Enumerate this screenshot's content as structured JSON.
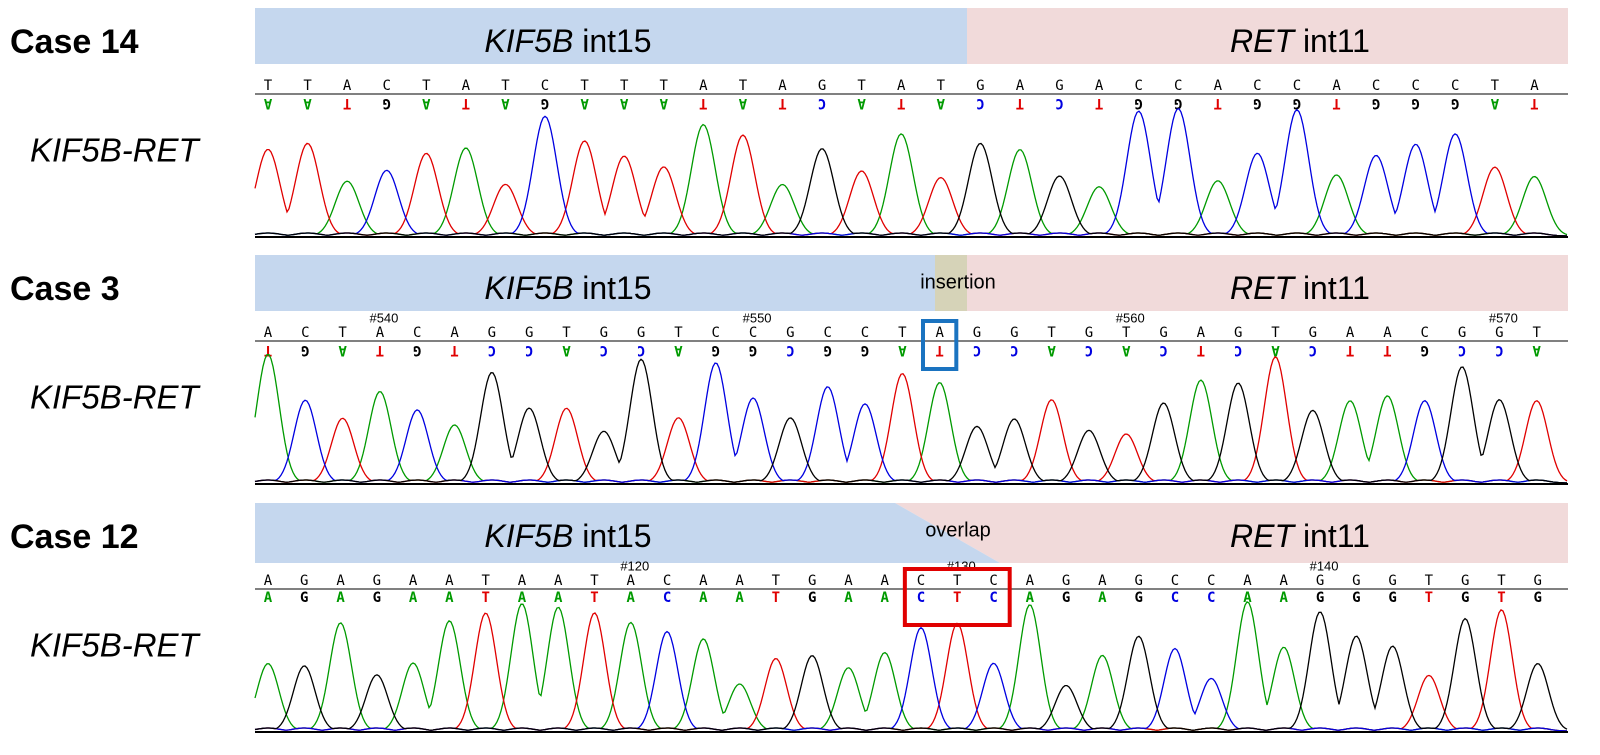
{
  "panels": [
    {
      "case": "Case 14",
      "fusion": "KIF5B-RET",
      "left_gene": "KIF5B",
      "left_region": "int15",
      "right_gene": "RET",
      "right_region": "int11",
      "top": "TTACTATCTTTATAGTATGAGACCACCACCCTA",
      "bottom": "AATGATAGAAATATCATACTCTGGTGGTGGGAT"
    },
    {
      "case": "Case 3",
      "fusion": "KIF5B-RET",
      "left_gene": "KIF5B",
      "left_region": "int15",
      "right_gene": "RET",
      "right_region": "int11",
      "annotation": "insertion",
      "markers": [
        "#540",
        "#550",
        "#560",
        "#570"
      ],
      "top": "ACTACAGGTGGTCCGCCTAGGTGTGAGTGAACGGT",
      "bottom": "TGATGTCCACCAGGCGGATCCACACTCACTTGCCA"
    },
    {
      "case": "Case 12",
      "fusion": "KIF5B-RET",
      "left_gene": "KIF5B",
      "left_region": "int15",
      "right_gene": "RET",
      "right_region": "int11",
      "annotation": "overlap",
      "markers": [
        "#120",
        "#130",
        "#140"
      ],
      "top": "AGAGAATAATACAATGAACTCAGAGCCAAGGGTGTG",
      "bottom": "AGAGAATAATACAATGAACTCAGAGCCAAGGGTGTG"
    }
  ]
}
